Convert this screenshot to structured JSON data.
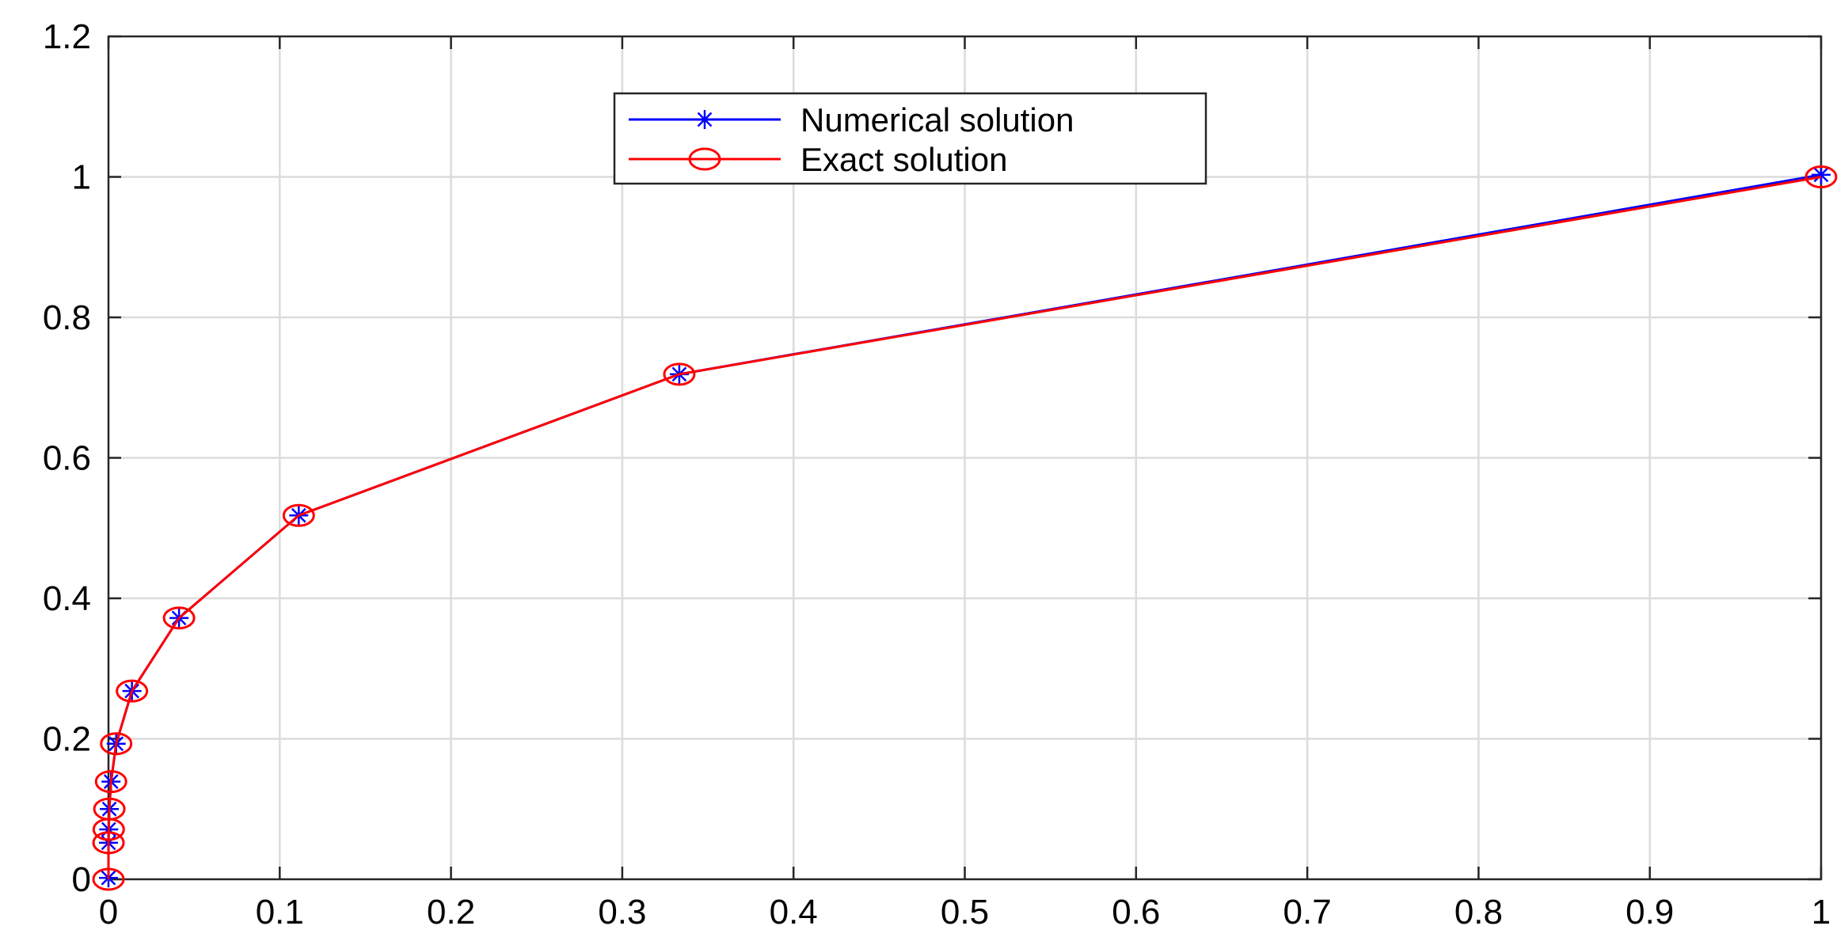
{
  "chart_data": {
    "type": "line",
    "title": "",
    "xlabel": "",
    "ylabel": "",
    "xlim": [
      0,
      1
    ],
    "ylim": [
      0,
      1.2
    ],
    "xticks": [
      0,
      0.1,
      0.2,
      0.3,
      0.4,
      0.5,
      0.6,
      0.7,
      0.8,
      0.9,
      1
    ],
    "xtick_labels": [
      "0",
      "0.1",
      "0.2",
      "0.3",
      "0.4",
      "0.5",
      "0.6",
      "0.7",
      "0.8",
      "0.9",
      "1"
    ],
    "yticks": [
      0,
      0.2,
      0.4,
      0.6,
      0.8,
      1,
      1.2
    ],
    "ytick_labels": [
      "0",
      "0.2",
      "0.4",
      "0.6",
      "0.8",
      "1",
      "1.2"
    ],
    "grid": true,
    "legend_position": "top-center",
    "series": [
      {
        "name": "Numerical solution",
        "color": "#0000ff",
        "marker": "asterisk",
        "x": [
          0,
          2e-05,
          0.00015,
          0.0005,
          0.0015,
          0.0045,
          0.0137,
          0.0412,
          0.1111,
          0.3333,
          1
        ],
        "y": [
          0.002,
          0.052,
          0.071,
          0.1,
          0.139,
          0.193,
          0.268,
          0.372,
          0.518,
          0.719,
          1.003
        ]
      },
      {
        "name": "Exact solution",
        "color": "#ff0000",
        "marker": "circle",
        "x": [
          0,
          2e-05,
          0.00015,
          0.0005,
          0.0015,
          0.0045,
          0.0137,
          0.0412,
          0.1111,
          0.3333,
          1
        ],
        "y": [
          0,
          0.052,
          0.071,
          0.1,
          0.139,
          0.193,
          0.268,
          0.372,
          0.518,
          0.719,
          1.0
        ]
      }
    ]
  }
}
